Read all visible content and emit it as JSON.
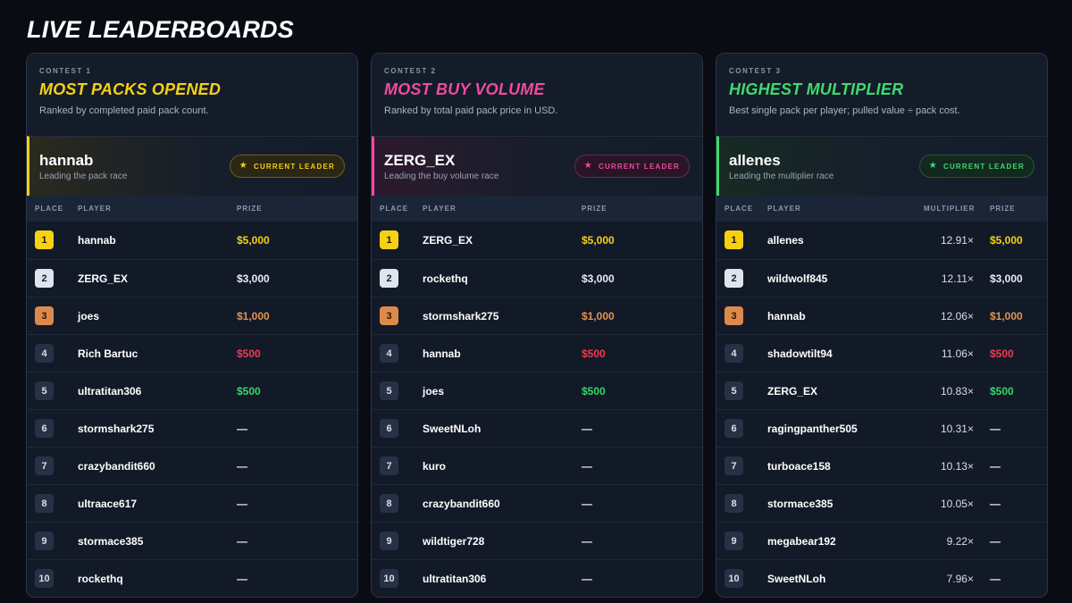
{
  "page_title": "LIVE LEADERBOARDS",
  "colors": {
    "yellow": "#f6d112",
    "pink": "#f04aa0",
    "green": "#3fd96e",
    "background": "#0a0c14",
    "card": "#121a28"
  },
  "star_glyph": "★",
  "boards": [
    {
      "contest_label": "CONTEST 1",
      "title": "MOST PACKS OPENED",
      "description": "Ranked by completed paid pack count.",
      "leader": {
        "name": "hannab",
        "subtitle": "Leading the pack race",
        "badge": "CURRENT LEADER"
      },
      "columns": {
        "place": "PLACE",
        "player": "PLAYER",
        "prize": "PRIZE"
      },
      "rows": [
        {
          "place": "1",
          "player": "hannab",
          "prize": "$5,000"
        },
        {
          "place": "2",
          "player": "ZERG_EX",
          "prize": "$3,000"
        },
        {
          "place": "3",
          "player": "joes",
          "prize": "$1,000"
        },
        {
          "place": "4",
          "player": "Rich Bartuc",
          "prize": "$500"
        },
        {
          "place": "5",
          "player": "ultratitan306",
          "prize": "$500"
        },
        {
          "place": "6",
          "player": "stormshark275",
          "prize": "—"
        },
        {
          "place": "7",
          "player": "crazybandit660",
          "prize": "—"
        },
        {
          "place": "8",
          "player": "ultraace617",
          "prize": "—"
        },
        {
          "place": "9",
          "player": "stormace385",
          "prize": "—"
        },
        {
          "place": "10",
          "player": "rockethq",
          "prize": "—"
        }
      ]
    },
    {
      "contest_label": "CONTEST 2",
      "title": "MOST BUY VOLUME",
      "description": "Ranked by total paid pack price in USD.",
      "leader": {
        "name": "ZERG_EX",
        "subtitle": "Leading the buy volume race",
        "badge": "CURRENT LEADER"
      },
      "columns": {
        "place": "PLACE",
        "player": "PLAYER",
        "prize": "PRIZE"
      },
      "rows": [
        {
          "place": "1",
          "player": "ZERG_EX",
          "prize": "$5,000"
        },
        {
          "place": "2",
          "player": "rockethq",
          "prize": "$3,000"
        },
        {
          "place": "3",
          "player": "stormshark275",
          "prize": "$1,000"
        },
        {
          "place": "4",
          "player": "hannab",
          "prize": "$500"
        },
        {
          "place": "5",
          "player": "joes",
          "prize": "$500"
        },
        {
          "place": "6",
          "player": "SweetNLoh",
          "prize": "—"
        },
        {
          "place": "7",
          "player": "kuro",
          "prize": "—"
        },
        {
          "place": "8",
          "player": "crazybandit660",
          "prize": "—"
        },
        {
          "place": "9",
          "player": "wildtiger728",
          "prize": "—"
        },
        {
          "place": "10",
          "player": "ultratitan306",
          "prize": "—"
        }
      ]
    },
    {
      "contest_label": "CONTEST 3",
      "title": "HIGHEST MULTIPLIER",
      "description": "Best single pack per player; pulled value ÷ pack cost.",
      "leader": {
        "name": "allenes",
        "subtitle": "Leading the multiplier race",
        "badge": "CURRENT LEADER"
      },
      "columns": {
        "place": "PLACE",
        "player": "PLAYER",
        "multiplier": "MULTIPLIER",
        "prize": "PRIZE"
      },
      "rows": [
        {
          "place": "1",
          "player": "allenes",
          "multiplier": "12.91×",
          "prize": "$5,000"
        },
        {
          "place": "2",
          "player": "wildwolf845",
          "multiplier": "12.11×",
          "prize": "$3,000"
        },
        {
          "place": "3",
          "player": "hannab",
          "multiplier": "12.06×",
          "prize": "$1,000"
        },
        {
          "place": "4",
          "player": "shadowtilt94",
          "multiplier": "11.06×",
          "prize": "$500"
        },
        {
          "place": "5",
          "player": "ZERG_EX",
          "multiplier": "10.83×",
          "prize": "$500"
        },
        {
          "place": "6",
          "player": "ragingpanther505",
          "multiplier": "10.31×",
          "prize": "—"
        },
        {
          "place": "7",
          "player": "turboace158",
          "multiplier": "10.13×",
          "prize": "—"
        },
        {
          "place": "8",
          "player": "stormace385",
          "multiplier": "10.05×",
          "prize": "—"
        },
        {
          "place": "9",
          "player": "megabear192",
          "multiplier": "9.22×",
          "prize": "—"
        },
        {
          "place": "10",
          "player": "SweetNLoh",
          "multiplier": "7.96×",
          "prize": "—"
        }
      ]
    }
  ]
}
